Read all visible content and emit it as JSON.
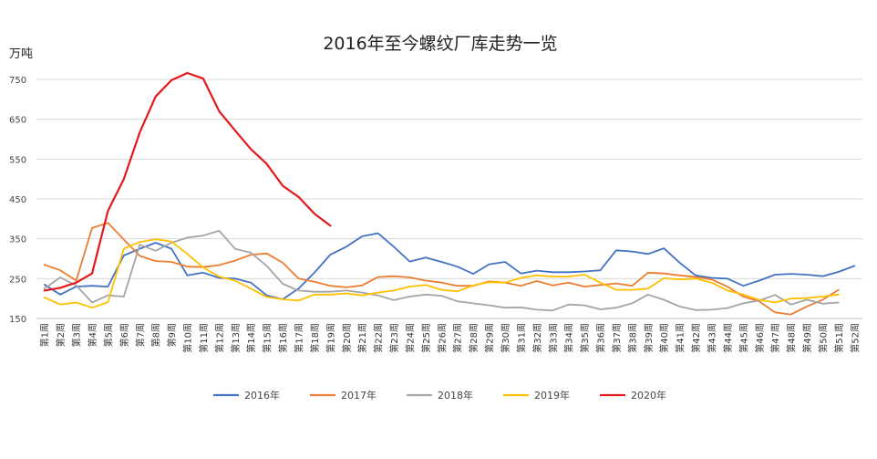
{
  "chart_data": {
    "type": "line",
    "title": "2016年至今螺纹厂库走势一览",
    "ylabel": "万吨",
    "xlabel": "",
    "ylim": [
      150,
      750
    ],
    "yticks": [
      150,
      250,
      350,
      450,
      550,
      650,
      750
    ],
    "grid": "horizontal",
    "legend_position": "bottom",
    "categories": [
      "第1周",
      "第2周",
      "第3周",
      "第4周",
      "第5周",
      "第6周",
      "第7周",
      "第8周",
      "第9周",
      "第10周",
      "第11周",
      "第12周",
      "第13周",
      "第14周",
      "第15周",
      "第16周",
      "第17周",
      "第18周",
      "第19周",
      "第20周",
      "第21周",
      "第22周",
      "第23周",
      "第24周",
      "第25周",
      "第26周",
      "第27周",
      "第28周",
      "第29周",
      "第30周",
      "第31周",
      "第32周",
      "第33周",
      "第34周",
      "第35周",
      "第36周",
      "第37周",
      "第38周",
      "第39周",
      "第40周",
      "第41周",
      "第42周",
      "第43周",
      "第44周",
      "第45周",
      "第46周",
      "第47周",
      "第48周",
      "第49周",
      "第50周",
      "第51周",
      "第52周"
    ],
    "series": [
      {
        "name": "2016年",
        "color": "#4472C4",
        "values": [
          235,
          210,
          230,
          232,
          230,
          308,
          325,
          340,
          325,
          258,
          265,
          252,
          250,
          240,
          208,
          198,
          225,
          265,
          310,
          330,
          356,
          364,
          330,
          293,
          303,
          292,
          280,
          262,
          286,
          292,
          263,
          270,
          266,
          266,
          268,
          271,
          321,
          318,
          312,
          326,
          290,
          258,
          252,
          250,
          232,
          245,
          260,
          262,
          260,
          256,
          267,
          282
        ]
      },
      {
        "name": "2017年",
        "color": "#ED7D31",
        "values": [
          285,
          271,
          245,
          377,
          390,
          348,
          307,
          294,
          292,
          280,
          279,
          284,
          295,
          310,
          313,
          290,
          250,
          242,
          232,
          228,
          233,
          254,
          256,
          253,
          245,
          240,
          232,
          232,
          243,
          240,
          232,
          244,
          233,
          240,
          230,
          234,
          238,
          232,
          265,
          263,
          258,
          254,
          248,
          230,
          205,
          193,
          165,
          160,
          180,
          197,
          222,
          null
        ]
      },
      {
        "name": "2018年",
        "color": "#A5A5A5",
        "values": [
          225,
          253,
          233,
          190,
          208,
          205,
          335,
          320,
          340,
          353,
          358,
          370,
          325,
          315,
          282,
          237,
          220,
          217,
          217,
          220,
          215,
          208,
          196,
          205,
          210,
          207,
          193,
          188,
          183,
          177,
          178,
          172,
          170,
          185,
          183,
          173,
          177,
          188,
          210,
          197,
          180,
          171,
          172,
          176,
          188,
          195,
          209,
          185,
          197,
          187,
          190,
          null
        ]
      },
      {
        "name": "2019年",
        "color": "#FFC000",
        "values": [
          203,
          185,
          190,
          177,
          191,
          325,
          342,
          349,
          343,
          312,
          278,
          255,
          245,
          225,
          204,
          198,
          195,
          210,
          210,
          213,
          208,
          215,
          220,
          230,
          234,
          222,
          218,
          233,
          241,
          240,
          252,
          258,
          255,
          255,
          260,
          240,
          222,
          222,
          225,
          251,
          248,
          250,
          240,
          220,
          210,
          197,
          190,
          200,
          201,
          205,
          210,
          null
        ]
      },
      {
        "name": "2020年",
        "color": "#E31A1C",
        "values": [
          220,
          227,
          240,
          263,
          420,
          500,
          617,
          707,
          748,
          766,
          752,
          670,
          622,
          575,
          538,
          483,
          455,
          413,
          383,
          null,
          null,
          null,
          null,
          null,
          null,
          null,
          null,
          null,
          null,
          null,
          null,
          null,
          null,
          null,
          null,
          null,
          null,
          null,
          null,
          null,
          null,
          null,
          null,
          null,
          null,
          null,
          null,
          null,
          null,
          null,
          null,
          null
        ]
      }
    ]
  }
}
